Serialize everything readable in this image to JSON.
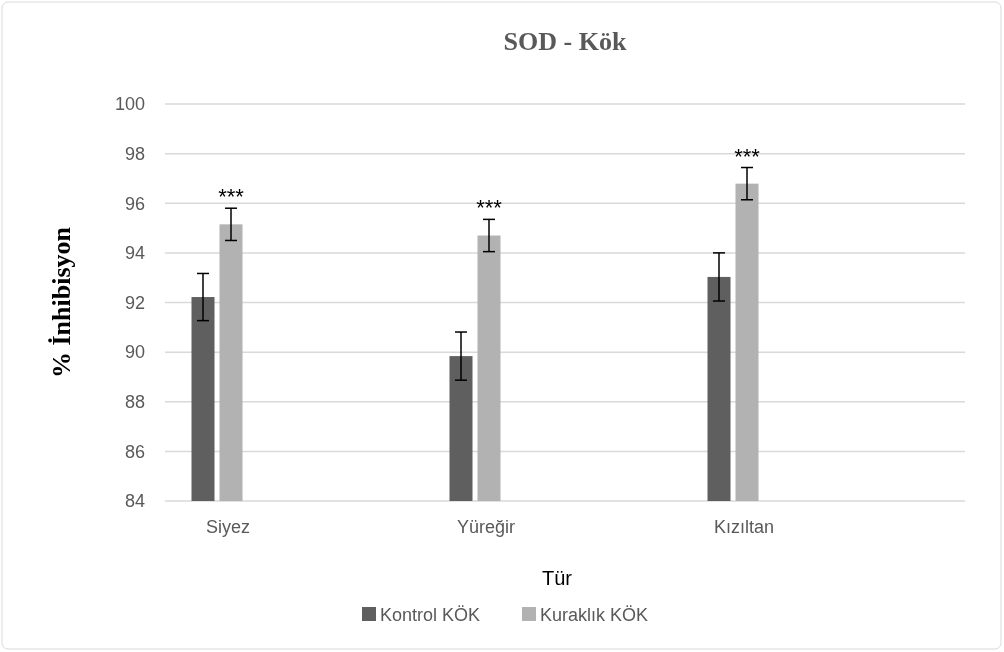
{
  "chart_data": {
    "type": "bar",
    "title": "SOD - Kök",
    "xlabel": "Tür",
    "ylabel": "% İnhibisyon",
    "categories": [
      "Siyez",
      "Yüreğir",
      "Kızıltan"
    ],
    "series": [
      {
        "name": "Kontrol KÖK",
        "color": "#5f5f5f",
        "values": [
          92.22,
          89.84,
          93.03
        ],
        "errors": [
          0.95,
          0.97,
          0.97
        ]
      },
      {
        "name": "Kuraklık KÖK",
        "color": "#b2b2b2",
        "values": [
          95.15,
          94.7,
          96.79
        ],
        "errors": [
          0.65,
          0.65,
          0.65
        ]
      }
    ],
    "ylim": [
      84,
      100
    ],
    "yticks": [
      84,
      86,
      88,
      90,
      92,
      94,
      96,
      98,
      100
    ],
    "grid": "y",
    "legend": "bottom",
    "annotations": [
      {
        "text": "***",
        "x": "Siyez",
        "y": 95.8
      },
      {
        "text": "***",
        "x": "Yüreğir",
        "y": 95.35
      },
      {
        "text": "***",
        "x": "Kızıltan",
        "y": 97.44
      }
    ]
  }
}
